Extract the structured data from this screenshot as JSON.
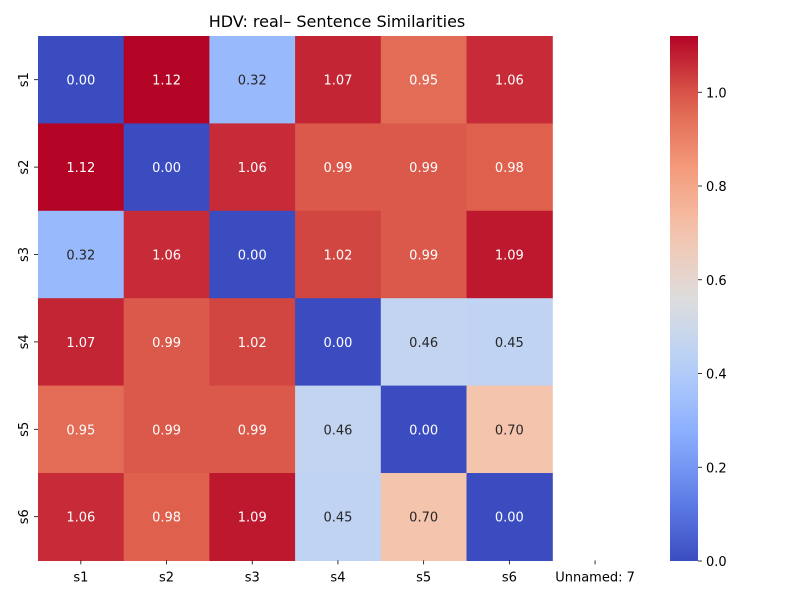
{
  "chart_data": {
    "type": "heatmap",
    "title": "HDV: real– Sentence Similarities",
    "row_labels": [
      "s1",
      "s2",
      "s3",
      "s4",
      "s5",
      "s6"
    ],
    "column_labels": [
      "s1",
      "s2",
      "s3",
      "s4",
      "s5",
      "s6",
      "Unnamed: 7"
    ],
    "values": [
      [
        0.0,
        1.12,
        0.32,
        1.07,
        0.95,
        1.06
      ],
      [
        1.12,
        0.0,
        1.06,
        0.99,
        0.99,
        0.98
      ],
      [
        0.32,
        1.06,
        0.0,
        1.02,
        0.99,
        1.09
      ],
      [
        1.07,
        0.99,
        1.02,
        0.0,
        0.46,
        0.45
      ],
      [
        0.95,
        0.99,
        0.99,
        0.46,
        0.0,
        0.7
      ],
      [
        1.06,
        0.98,
        1.09,
        0.45,
        0.7,
        0.0
      ]
    ],
    "value_format": "0.00",
    "colormap": "coolwarm",
    "color_range": [
      0.0,
      1.12
    ],
    "colorbar_ticks": [
      0.0,
      0.2,
      0.4,
      0.6,
      0.8,
      1.0
    ],
    "colorbar_tick_labels": [
      "0.0",
      "0.2",
      "0.4",
      "0.6",
      "0.8",
      "1.0"
    ],
    "empty_column": "Unnamed: 7"
  }
}
